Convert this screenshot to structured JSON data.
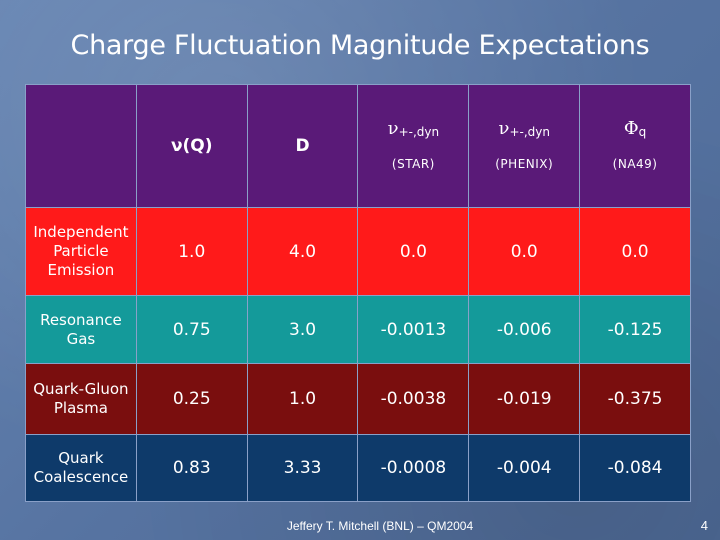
{
  "title": "Charge Fluctuation Magnitude Expectations",
  "header": {
    "col1": "ν(Q)",
    "col2": "D",
    "col3": {
      "sym": "ν",
      "sub": "+-,dyn",
      "ref": "(STAR)"
    },
    "col4": {
      "sym": "ν",
      "sub": "+-,dyn",
      "ref": "(PHENIX)"
    },
    "col5": {
      "sym": "Φ",
      "sub": "q",
      "ref": "(NA49)"
    }
  },
  "rows": [
    {
      "label": "Independent Particle Emission",
      "values": [
        "1.0",
        "4.0",
        "0.0",
        "0.0",
        "0.0"
      ],
      "color": "#ff1a1a"
    },
    {
      "label": "Resonance Gas",
      "values": [
        "0.75",
        "3.0",
        "-0.0013",
        "-0.006",
        "-0.125"
      ],
      "color": "#149a9a"
    },
    {
      "label": "Quark-Gluon Plasma",
      "values": [
        "0.25",
        "1.0",
        "-0.0038",
        "-0.019",
        "-0.375"
      ],
      "color": "#7a0e0e"
    },
    {
      "label": "Quark Coalescence",
      "values": [
        "0.83",
        "3.33",
        "-0.0008",
        "-0.004",
        "-0.084"
      ],
      "color": "#0e3a6a"
    }
  ],
  "header_color": "#5a1a78",
  "footer": "Jeffery T. Mitchell (BNL) – QM2004",
  "page_number": "4"
}
